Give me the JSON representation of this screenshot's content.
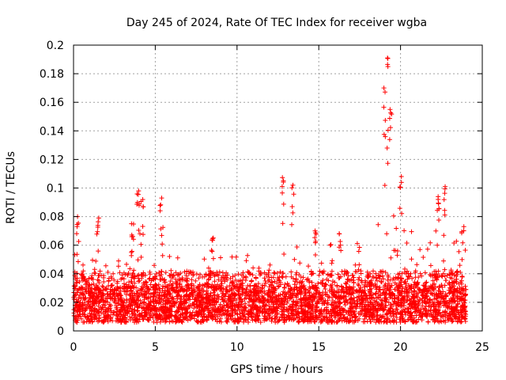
{
  "chart_data": {
    "type": "scatter",
    "title": "Day 245 of 2024, Rate Of TEC Index for receiver wgba",
    "xlabel": "GPS time / hours",
    "ylabel": "ROTI / TECUs",
    "xlim": [
      0,
      25
    ],
    "ylim": [
      0,
      0.2
    ],
    "xticks": [
      "0",
      "5",
      "10",
      "15",
      "20",
      "25"
    ],
    "yticks": [
      "0",
      "0.02",
      "0.04",
      "0.06",
      "0.08",
      "0.1",
      "0.12",
      "0.14",
      "0.16",
      "0.18",
      "0.2"
    ],
    "grid": true,
    "marker": "+",
    "series_color": "#ff0000",
    "series": [
      {
        "name": "ROTI",
        "note": "dense point cloud over 0-24 h; baseline values ~0.005-0.04 TECU/s",
        "peaks": [
          {
            "x": 0.25,
            "y": 0.08
          },
          {
            "x": 1.5,
            "y": 0.079
          },
          {
            "x": 3.6,
            "y": 0.075
          },
          {
            "x": 3.95,
            "y": 0.098
          },
          {
            "x": 4.2,
            "y": 0.092
          },
          {
            "x": 5.35,
            "y": 0.093
          },
          {
            "x": 8.5,
            "y": 0.065
          },
          {
            "x": 12.8,
            "y": 0.105
          },
          {
            "x": 13.4,
            "y": 0.102
          },
          {
            "x": 14.8,
            "y": 0.07
          },
          {
            "x": 16.3,
            "y": 0.068
          },
          {
            "x": 19.0,
            "y": 0.17
          },
          {
            "x": 19.25,
            "y": 0.191
          },
          {
            "x": 19.4,
            "y": 0.155
          },
          {
            "x": 20.0,
            "y": 0.108
          },
          {
            "x": 22.3,
            "y": 0.094
          },
          {
            "x": 22.7,
            "y": 0.101
          },
          {
            "x": 23.8,
            "y": 0.073
          }
        ]
      }
    ]
  }
}
